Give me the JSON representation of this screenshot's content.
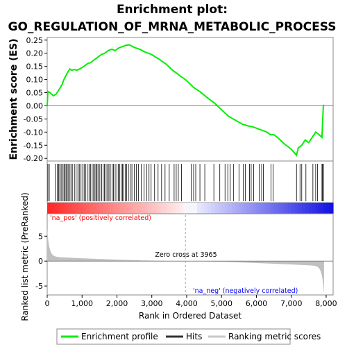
{
  "chart_data": {
    "type": "line",
    "title": [
      "Enrichment plot:",
      "GO_REGULATION_OF_MRNA_METABOLIC_PROCESS"
    ],
    "xlabel": "Rank in Ordered Dataset",
    "ylabel_top": "Enrichment score (ES)",
    "ylabel_bottom": "Ranked list metric (PreRanked)",
    "xlim": [
      0,
      8200
    ],
    "x_ticks": [
      0,
      1000,
      2000,
      3000,
      4000,
      5000,
      6000,
      7000,
      8000
    ],
    "x_tick_labels": [
      "0",
      "1,000",
      "2,000",
      "3,000",
      "4,000",
      "5,000",
      "6,000",
      "7,000",
      "8,000"
    ],
    "es_ylim": [
      -0.21,
      0.26
    ],
    "es_ticks": [
      -0.2,
      -0.15,
      -0.1,
      -0.05,
      0.0,
      0.05,
      0.1,
      0.15,
      0.2,
      0.25
    ],
    "es_tick_labels": [
      "-0.20",
      "-0.15",
      "-0.10",
      "-0.05",
      "0.00",
      "0.05",
      "0.10",
      "0.15",
      "0.20",
      "0.25"
    ],
    "metric_ylim": [
      -6.8,
      9.5
    ],
    "metric_ticks": [
      5,
      0,
      -5
    ],
    "metric_tick_labels": [
      "5",
      "0",
      "-5"
    ],
    "series": [
      {
        "name": "Enrichment profile",
        "color": "#00ee00",
        "x": [
          0,
          20,
          80,
          180,
          260,
          330,
          380,
          430,
          480,
          540,
          600,
          650,
          700,
          780,
          860,
          950,
          1050,
          1150,
          1250,
          1350,
          1450,
          1550,
          1650,
          1750,
          1850,
          1950,
          2050,
          2150,
          2250,
          2350,
          2420,
          2500,
          2600,
          2700,
          2800,
          2900,
          3000,
          3200,
          3400,
          3600,
          3800,
          3965,
          4200,
          4400,
          4600,
          4800,
          5000,
          5200,
          5400,
          5600,
          5800,
          5900,
          6000,
          6100,
          6200,
          6300,
          6400,
          6500,
          6600,
          6800,
          7000,
          7150,
          7200,
          7300,
          7400,
          7500,
          7600,
          7700,
          7800,
          7880,
          7900,
          7920,
          7940
        ],
        "y": [
          0.0,
          0.055,
          0.05,
          0.038,
          0.045,
          0.06,
          0.07,
          0.082,
          0.1,
          0.115,
          0.13,
          0.14,
          0.135,
          0.138,
          0.135,
          0.142,
          0.15,
          0.16,
          0.165,
          0.175,
          0.185,
          0.195,
          0.2,
          0.21,
          0.215,
          0.21,
          0.22,
          0.225,
          0.23,
          0.232,
          0.228,
          0.222,
          0.218,
          0.212,
          0.205,
          0.2,
          0.195,
          0.178,
          0.16,
          0.135,
          0.115,
          0.1,
          0.07,
          0.052,
          0.03,
          0.01,
          -0.015,
          -0.04,
          -0.055,
          -0.07,
          -0.078,
          -0.08,
          -0.085,
          -0.09,
          -0.095,
          -0.1,
          -0.11,
          -0.11,
          -0.12,
          -0.145,
          -0.165,
          -0.188,
          -0.16,
          -0.15,
          -0.13,
          -0.14,
          -0.12,
          -0.1,
          -0.11,
          -0.12,
          -0.06,
          0.0,
          0.003
        ]
      }
    ],
    "hits": [
      20,
      60,
      230,
      290,
      330,
      360,
      400,
      440,
      480,
      510,
      540,
      570,
      600,
      640,
      680,
      720,
      780,
      830,
      880,
      920,
      970,
      1020,
      1060,
      1100,
      1150,
      1200,
      1240,
      1290,
      1330,
      1370,
      1400,
      1430,
      1470,
      1510,
      1560,
      1600,
      1640,
      1690,
      1730,
      1770,
      1810,
      1860,
      1900,
      1950,
      2000,
      2040,
      2080,
      2120,
      2160,
      2200,
      2240,
      2280,
      2330,
      2380,
      2430,
      2500,
      2560,
      2620,
      2700,
      2780,
      2850,
      2920,
      2980,
      3080,
      3180,
      3280,
      3380,
      3500,
      3640,
      3700,
      3760,
      3850,
      4130,
      4200,
      4260,
      4380,
      4520,
      4780,
      4950,
      5100,
      5180,
      5250,
      5340,
      5500,
      5620,
      5680,
      5800,
      5850,
      5920,
      6080,
      6150,
      6200,
      6420,
      6480,
      7150,
      7250,
      7300,
      7420,
      7620,
      7700,
      7750,
      7880,
      7900,
      7920
    ],
    "legend": [
      {
        "label": "Enrichment profile",
        "color": "#00ee00"
      },
      {
        "label": "Hits",
        "color": "#333333"
      },
      {
        "label": "Ranking metric scores",
        "color": "#c8c8c8"
      }
    ],
    "annotations": {
      "pos_label": "'na_pos' (positively correlated)",
      "neg_label": "'na_neg' (negatively correlated)",
      "zero_cross": "Zero cross at 3965",
      "zero_cross_x": 3965
    },
    "colors": {
      "pos_label": "#ff0000",
      "neg_label": "#0000ff",
      "metric_fill": "#c0c0c0",
      "grid_zero": "#808080"
    }
  }
}
